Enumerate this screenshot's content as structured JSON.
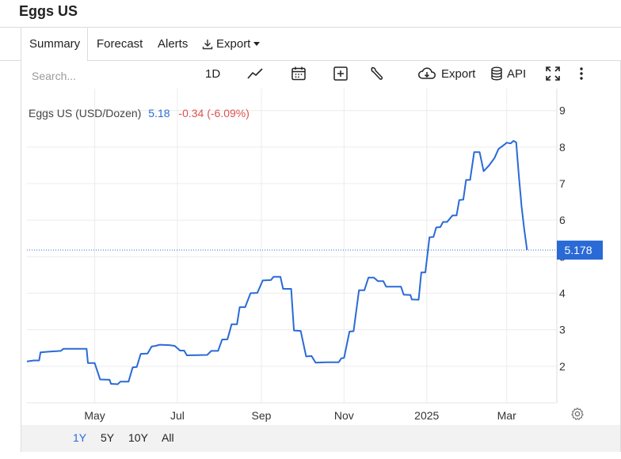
{
  "page": {
    "title": "Eggs US"
  },
  "tabs": [
    {
      "label": "Summary",
      "active": true
    },
    {
      "label": "Forecast",
      "active": false
    },
    {
      "label": "Alerts",
      "active": false
    },
    {
      "label": "Export",
      "active": false
    }
  ],
  "toolbar": {
    "search_placeholder": "Search...",
    "interval_label": "1D",
    "export_label": "Export",
    "api_label": "API"
  },
  "legend": {
    "name": "Eggs US (USD/Dozen)",
    "value": "5.18",
    "change": "-0.34 (-6.09%)",
    "value_color": "#2a6ad6",
    "change_color": "#d9534f"
  },
  "chart_data": {
    "type": "line",
    "title": "Eggs US (USD/Dozen)",
    "ylim": [
      1,
      9.6
    ],
    "y_ticks": [
      2,
      3,
      4,
      5,
      6,
      7,
      8,
      9
    ],
    "x_ticks": [
      {
        "label": "May",
        "date": "2024-05-01"
      },
      {
        "label": "Jul",
        "date": "2024-07-01"
      },
      {
        "label": "Sep",
        "date": "2024-09-01"
      },
      {
        "label": "Nov",
        "date": "2024-11-01"
      },
      {
        "label": "2025",
        "date": "2025-01-01"
      },
      {
        "label": "Mar",
        "date": "2025-03-01"
      }
    ],
    "xlim": [
      "2024-03-12",
      "2025-04-07"
    ],
    "last_value_label": "5.178",
    "line_color": "#2a6ad6",
    "grid": true,
    "series": [
      {
        "name": "Eggs US",
        "points": [
          [
            "2024-03-12",
            2.13
          ],
          [
            "2024-03-17",
            2.16
          ],
          [
            "2024-03-21",
            2.16
          ],
          [
            "2024-03-22",
            2.38
          ],
          [
            "2024-03-28",
            2.4
          ],
          [
            "2024-04-06",
            2.42
          ],
          [
            "2024-04-08",
            2.48
          ],
          [
            "2024-04-25",
            2.48
          ],
          [
            "2024-04-26",
            2.09
          ],
          [
            "2024-05-01",
            2.09
          ],
          [
            "2024-05-05",
            1.64
          ],
          [
            "2024-05-12",
            1.63
          ],
          [
            "2024-05-13",
            1.52
          ],
          [
            "2024-05-18",
            1.51
          ],
          [
            "2024-05-20",
            1.58
          ],
          [
            "2024-05-26",
            1.58
          ],
          [
            "2024-05-29",
            1.97
          ],
          [
            "2024-06-01",
            1.98
          ],
          [
            "2024-06-04",
            2.34
          ],
          [
            "2024-06-09",
            2.35
          ],
          [
            "2024-06-12",
            2.54
          ],
          [
            "2024-06-15",
            2.56
          ],
          [
            "2024-06-18",
            2.59
          ],
          [
            "2024-06-25",
            2.58
          ],
          [
            "2024-06-29",
            2.56
          ],
          [
            "2024-07-03",
            2.43
          ],
          [
            "2024-07-06",
            2.43
          ],
          [
            "2024-07-08",
            2.3
          ],
          [
            "2024-07-23",
            2.31
          ],
          [
            "2024-07-26",
            2.42
          ],
          [
            "2024-07-31",
            2.42
          ],
          [
            "2024-08-03",
            2.73
          ],
          [
            "2024-08-07",
            2.74
          ],
          [
            "2024-08-10",
            3.15
          ],
          [
            "2024-08-14",
            3.15
          ],
          [
            "2024-08-16",
            3.62
          ],
          [
            "2024-08-20",
            3.62
          ],
          [
            "2024-08-24",
            4.0
          ],
          [
            "2024-08-29",
            4.01
          ],
          [
            "2024-09-02",
            4.35
          ],
          [
            "2024-09-08",
            4.36
          ],
          [
            "2024-09-10",
            4.45
          ],
          [
            "2024-09-15",
            4.45
          ],
          [
            "2024-09-17",
            4.12
          ],
          [
            "2024-09-23",
            4.12
          ],
          [
            "2024-09-25",
            2.98
          ],
          [
            "2024-09-30",
            2.97
          ],
          [
            "2024-10-04",
            2.27
          ],
          [
            "2024-10-08",
            2.28
          ],
          [
            "2024-10-11",
            2.1
          ],
          [
            "2024-10-19",
            2.11
          ],
          [
            "2024-10-28",
            2.11
          ],
          [
            "2024-10-30",
            2.22
          ],
          [
            "2024-11-01",
            2.23
          ],
          [
            "2024-11-05",
            2.95
          ],
          [
            "2024-11-08",
            2.96
          ],
          [
            "2024-11-12",
            4.08
          ],
          [
            "2024-11-16",
            4.08
          ],
          [
            "2024-11-19",
            4.43
          ],
          [
            "2024-11-23",
            4.43
          ],
          [
            "2024-11-26",
            4.33
          ],
          [
            "2024-11-30",
            4.33
          ],
          [
            "2024-12-02",
            4.18
          ],
          [
            "2024-12-13",
            4.18
          ],
          [
            "2024-12-15",
            3.96
          ],
          [
            "2024-12-20",
            3.95
          ],
          [
            "2024-12-21",
            3.83
          ],
          [
            "2024-12-26",
            3.82
          ],
          [
            "2024-12-28",
            4.57
          ],
          [
            "2024-12-31",
            4.57
          ],
          [
            "2025-01-03",
            5.53
          ],
          [
            "2025-01-06",
            5.54
          ],
          [
            "2025-01-08",
            5.8
          ],
          [
            "2025-01-11",
            5.81
          ],
          [
            "2025-01-13",
            5.95
          ],
          [
            "2025-01-16",
            5.95
          ],
          [
            "2025-01-20",
            6.13
          ],
          [
            "2025-01-23",
            6.13
          ],
          [
            "2025-01-25",
            6.55
          ],
          [
            "2025-01-28",
            6.56
          ],
          [
            "2025-01-30",
            7.1
          ],
          [
            "2025-02-02",
            7.1
          ],
          [
            "2025-02-05",
            7.86
          ],
          [
            "2025-02-09",
            7.86
          ],
          [
            "2025-02-12",
            7.34
          ],
          [
            "2025-02-16",
            7.5
          ],
          [
            "2025-02-20",
            7.7
          ],
          [
            "2025-02-23",
            7.95
          ],
          [
            "2025-02-27",
            8.06
          ],
          [
            "2025-03-01",
            8.12
          ],
          [
            "2025-03-04",
            8.1
          ],
          [
            "2025-03-06",
            8.17
          ],
          [
            "2025-03-08",
            8.13
          ],
          [
            "2025-03-10",
            7.2
          ],
          [
            "2025-03-12",
            6.37
          ],
          [
            "2025-03-14",
            5.74
          ],
          [
            "2025-03-16",
            5.18
          ]
        ]
      }
    ]
  },
  "ranges": [
    {
      "label": "1Y",
      "active": true
    },
    {
      "label": "5Y",
      "active": false
    },
    {
      "label": "10Y",
      "active": false
    },
    {
      "label": "All",
      "active": false
    }
  ],
  "icons": {
    "line_type": "line-chart-icon",
    "calendar": "calendar-icon",
    "compare": "plus-box-icon",
    "settings": "wrench-icon",
    "export": "cloud-download-icon",
    "api": "database-icon",
    "fullscreen": "fullscreen-icon",
    "more": "vertical-dots-icon",
    "gear": "gear-icon"
  }
}
